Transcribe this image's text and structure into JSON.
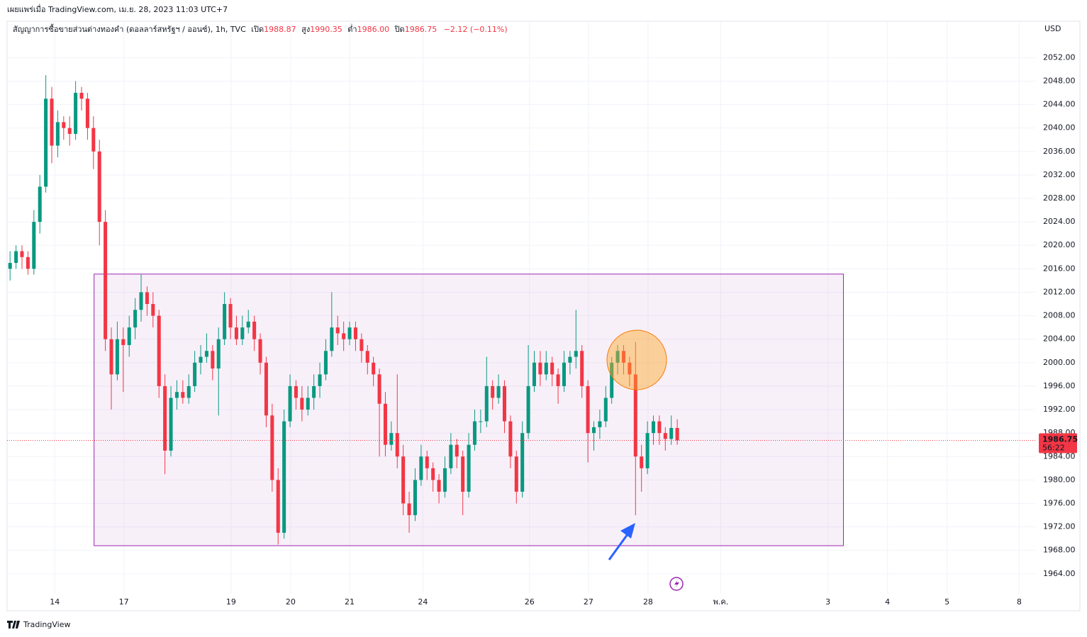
{
  "chart_data": {
    "type": "candlestick",
    "published": "เผยแพร่เมื่อ TradingView.com, เม.ย. 28, 2023 11:03 UTC+7",
    "title": "สัญญาการซื้อขายส่วนต่างทองคำ (ดอลลาร์สหรัฐฯ / ออนซ์), 1h, TVC",
    "legend": {
      "open_label": "เปิด",
      "open": "1988.87",
      "high_label": "สูง",
      "high": "1990.35",
      "low_label": "ต่ำ",
      "low": "1986.00",
      "close_label": "ปิด",
      "close": "1986.75",
      "change": "−2.12 (−0.11%)"
    },
    "currency": "USD",
    "last_price_label": "1986.75",
    "countdown": "56:22",
    "brand": "TradingView",
    "colors": {
      "up": "#089981",
      "down": "#f23645",
      "zone": "#9c27b0"
    },
    "grid": true,
    "open": [
      2016,
      2017,
      2019,
      2018,
      2016,
      2024,
      2030,
      2045,
      2037,
      2041,
      2040,
      2039,
      2046,
      2045,
      2040,
      2036,
      2024,
      2004,
      1998,
      2004,
      2003,
      2006,
      2009,
      2012,
      2010,
      2008,
      1996,
      1985,
      1994,
      1995,
      1994,
      1996,
      2000,
      2001,
      2002,
      1999,
      2004,
      2010,
      2006,
      2004,
      2006,
      2007,
      2004,
      2000,
      1991,
      1980,
      1971,
      1990,
      1996,
      1994,
      1992,
      1994,
      1996,
      1998,
      2002,
      2006,
      2005,
      2004,
      2006,
      2004,
      2002,
      2000,
      1998,
      1993,
      1986,
      1988,
      1984,
      1976,
      1974,
      1980,
      1984,
      1982,
      1980,
      1978,
      1982,
      1986,
      1984,
      1978,
      1986,
      1990,
      1990,
      1996,
      1994,
      1996,
      1990,
      1984,
      1978,
      1988,
      1996,
      2000,
      1998,
      2000,
      1998,
      1996,
      2000,
      2001,
      2002,
      1996,
      1988,
      1989,
      1990,
      1994,
      2000,
      2002,
      2000,
      1998,
      1984,
      1982,
      1988,
      1990,
      1988,
      1987,
      1988.87
    ],
    "high": [
      2019,
      2020,
      2020,
      2019,
      2026,
      2032,
      2049,
      2047,
      2043,
      2042,
      2042,
      2048,
      2047,
      2046,
      2042,
      2038,
      2026,
      2006,
      2007,
      2006,
      2008,
      2011,
      2015,
      2013,
      2012,
      2009,
      1998,
      1996,
      1997,
      1997,
      1998,
      2002,
      2003,
      2005,
      2003,
      2006,
      2012,
      2011,
      2008,
      2008,
      2009,
      2008,
      2005,
      2001,
      1993,
      1982,
      1992,
      1998,
      1997,
      1996,
      1996,
      1998,
      2000,
      2004,
      2012,
      2008,
      2007,
      2007,
      2007,
      2005,
      2003,
      2001,
      1999,
      1995,
      1990,
      1998,
      1986,
      1978,
      1982,
      1986,
      1985,
      1983,
      1981,
      1984,
      1988,
      1987,
      1985,
      1988,
      1992,
      1992,
      2001,
      1997,
      1998,
      1997,
      1991,
      1985,
      1990,
      2003,
      2002,
      2002,
      2002,
      2001,
      1999,
      2002,
      2002,
      2009,
      2003,
      1997,
      1990,
      1992,
      1996,
      2001,
      2003,
      2003,
      2001,
      2003.5,
      1986,
      1990,
      1991,
      1991,
      1989,
      1991,
      1990.35
    ],
    "low": [
      2014,
      2016,
      2016,
      2015,
      2015,
      2022,
      2029,
      2034,
      2035,
      2038,
      2037,
      2038,
      2043,
      2038,
      2033,
      2020,
      2002,
      1992,
      1997,
      1995,
      2001,
      2004,
      2007,
      2008,
      2006,
      1994,
      1981,
      1984,
      1992,
      1993,
      1993,
      1995,
      1998,
      2000,
      1997,
      1991,
      2003,
      2004,
      2003,
      2003,
      2005,
      2002,
      1998,
      1989,
      1978,
      1969,
      1970,
      1989,
      1992,
      1990,
      1991,
      1992,
      1994,
      1997,
      2001,
      2003,
      2002,
      2003,
      2002,
      2000,
      1998,
      1996,
      1984,
      1984,
      1985,
      1982,
      1974,
      1971,
      1973,
      1979,
      1980,
      1978,
      1976,
      1977,
      1981,
      1982,
      1974,
      1977,
      1985,
      1988,
      1989,
      1992,
      1993,
      1988,
      1982,
      1976,
      1977,
      1987,
      1995,
      1996,
      1997,
      1996,
      1993,
      1995,
      1998,
      1999,
      1994,
      1983,
      1985,
      1987,
      1989,
      1993,
      1998,
      1998,
      1996,
      1974,
      1978,
      1981,
      1986,
      1986,
      1985,
      1986,
      1986.0
    ],
    "close": [
      2017,
      2019,
      2018,
      2016,
      2024,
      2030,
      2045,
      2037,
      2041,
      2040,
      2039,
      2046,
      2045,
      2040,
      2036,
      2024,
      2004,
      1998,
      2004,
      2003,
      2006,
      2009,
      2012,
      2010,
      2008,
      1996,
      1985,
      1994,
      1995,
      1994,
      1996,
      2000,
      2001,
      2002,
      1999,
      2004,
      2010,
      2006,
      2004,
      2006,
      2007,
      2004,
      2000,
      1991,
      1980,
      1971,
      1990,
      1996,
      1994,
      1992,
      1994,
      1996,
      1998,
      2002,
      2006,
      2005,
      2004,
      2006,
      2004,
      2002,
      2000,
      1998,
      1993,
      1986,
      1988,
      1984,
      1976,
      1974,
      1980,
      1984,
      1982,
      1980,
      1978,
      1982,
      1986,
      1984,
      1978,
      1986,
      1990,
      1990,
      1996,
      1994,
      1996,
      1990,
      1984,
      1978,
      1988,
      1996,
      2000,
      1998,
      2000,
      1998,
      1996,
      2000,
      2001,
      2002,
      1996,
      1988,
      1989,
      1990,
      1994,
      2000,
      2002,
      2000,
      1998,
      1984,
      1982,
      1988,
      1990,
      1988,
      1987,
      1988.87,
      1986.75
    ],
    "xlim": [
      -0.5,
      172.1
    ],
    "xticks": [
      {
        "value": 7.5,
        "label": "14"
      },
      {
        "value": 19.1,
        "label": "17"
      },
      {
        "value": 37.1,
        "label": "19"
      },
      {
        "value": 47.1,
        "label": "20"
      },
      {
        "value": 57.0,
        "label": "21"
      },
      {
        "value": 69.3,
        "label": "24"
      },
      {
        "value": 87.2,
        "label": "26"
      },
      {
        "value": 97.1,
        "label": "27"
      },
      {
        "value": 107.1,
        "label": "28"
      },
      {
        "value": 119.3,
        "label": "พ.ค."
      },
      {
        "value": 137.3,
        "label": "3"
      },
      {
        "value": 147.3,
        "label": "4"
      },
      {
        "value": 157.3,
        "label": "5"
      },
      {
        "value": 169.4,
        "label": "8"
      }
    ],
    "ylim": [
      1960.6,
      2058.2
    ],
    "yticks": [
      {
        "value": 1964,
        "label": "1964.00"
      },
      {
        "value": 1968,
        "label": "1968.00"
      },
      {
        "value": 1972,
        "label": "1972.00"
      },
      {
        "value": 1976,
        "label": "1976.00"
      },
      {
        "value": 1980,
        "label": "1980.00"
      },
      {
        "value": 1984,
        "label": "1984.00"
      },
      {
        "value": 1988,
        "label": "1988.00"
      },
      {
        "value": 1992,
        "label": "1992.00"
      },
      {
        "value": 1996,
        "label": "1996.00"
      },
      {
        "value": 2000,
        "label": "2000.00"
      },
      {
        "value": 2004,
        "label": "2004.00"
      },
      {
        "value": 2008,
        "label": "2008.00"
      },
      {
        "value": 2012,
        "label": "2012.00"
      },
      {
        "value": 2016,
        "label": "2016.00"
      },
      {
        "value": 2020,
        "label": "2020.00"
      },
      {
        "value": 2024,
        "label": "2024.00"
      },
      {
        "value": 2028,
        "label": "2028.00"
      },
      {
        "value": 2032,
        "label": "2032.00"
      },
      {
        "value": 2036,
        "label": "2036.00"
      },
      {
        "value": 2040,
        "label": "2040.00"
      },
      {
        "value": 2044,
        "label": "2044.00"
      },
      {
        "value": 2048,
        "label": "2048.00"
      },
      {
        "value": 2052,
        "label": "2052.00"
      }
    ],
    "zone": {
      "xlim": [
        14.1,
        139.9
      ],
      "ylim": [
        1968.8,
        2015.1
      ]
    }
  }
}
